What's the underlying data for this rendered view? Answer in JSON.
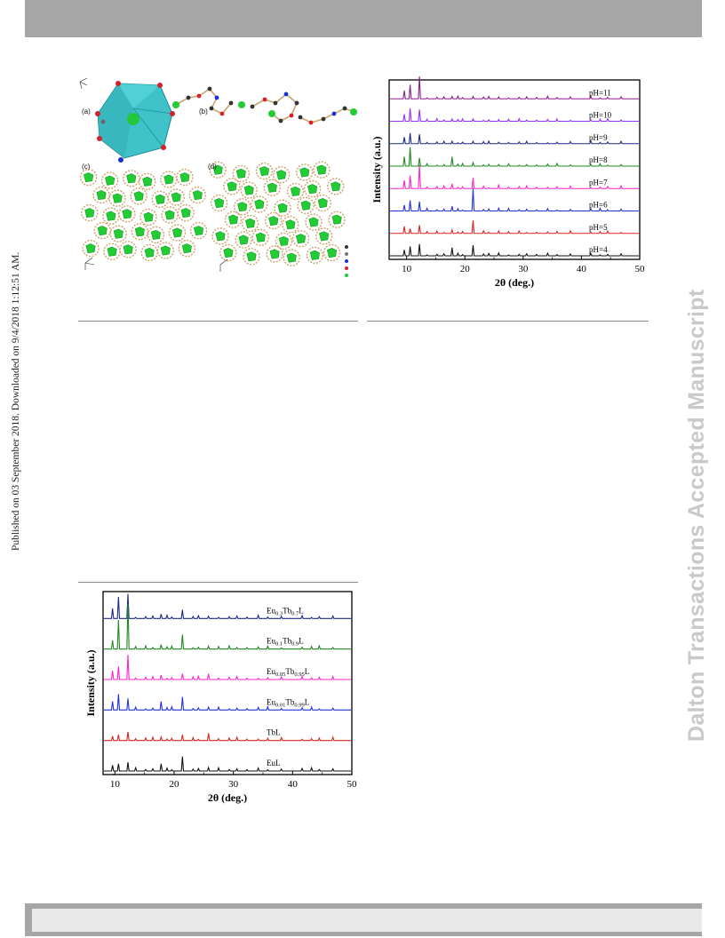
{
  "side_note": "Published on 03 September 2018. Downloaded on 9/4/2018 1:12:51 AM.",
  "watermark": "Dalton Transactions Accepted Manuscript",
  "structure_figure": {
    "panel_labels": [
      "(a)",
      "(b)",
      "(c)",
      "(d)"
    ],
    "colors": {
      "polyhedron": "#40c8cc",
      "metal": "#22cc33",
      "oxygen": "#d4202a",
      "nitrogen": "#1a2fd0",
      "carbon": "#333333",
      "bond": "#c9a46a"
    }
  },
  "chart_data": [
    {
      "type": "line",
      "xlabel": "2θ (deg.)",
      "ylabel": "Intensity (a.u.)",
      "xlim": [
        7,
        50
      ],
      "xticks": [
        10,
        20,
        30,
        40,
        50
      ],
      "grid": false,
      "peaks_2theta": [
        9.6,
        10.6,
        12.2,
        17.8,
        21.4,
        25.8,
        32.3
      ],
      "series": [
        {
          "name": "pH=11",
          "color": "#8b1a8b",
          "intensities": [
            0.35,
            0.6,
            0.95,
            0.1,
            0.1,
            0.08,
            0.06
          ]
        },
        {
          "name": "pH=10",
          "color": "#9b30ff",
          "intensities": [
            0.3,
            0.55,
            0.5,
            0.1,
            0.1,
            0.07,
            0.05
          ]
        },
        {
          "name": "pH=9",
          "color": "#1c2a8c",
          "intensities": [
            0.28,
            0.45,
            0.4,
            0.1,
            0.1,
            0.06,
            0.05
          ]
        },
        {
          "name": "pH=8",
          "color": "#1e8a1e",
          "intensities": [
            0.4,
            0.8,
            0.35,
            0.4,
            0.15,
            0.07,
            0.05
          ]
        },
        {
          "name": "pH=7",
          "color": "#ff22cc",
          "intensities": [
            0.35,
            0.55,
            1.0,
            0.2,
            0.45,
            0.15,
            0.06
          ]
        },
        {
          "name": "pH=6",
          "color": "#2233dd",
          "intensities": [
            0.25,
            0.45,
            0.4,
            0.2,
            0.95,
            0.12,
            0.05
          ]
        },
        {
          "name": "pH=5",
          "color": "#dd2222",
          "intensities": [
            0.3,
            0.2,
            0.35,
            0.15,
            0.55,
            0.1,
            0.05
          ]
        },
        {
          "name": "pH=4",
          "color": "#111111",
          "intensities": [
            0.25,
            0.4,
            0.5,
            0.35,
            0.45,
            0.12,
            0.06
          ]
        }
      ]
    },
    {
      "type": "line",
      "xlabel": "2θ (deg.)",
      "ylabel": "Intensity (a.u.)",
      "xlim": [
        8,
        50
      ],
      "xticks": [
        10,
        20,
        30,
        40,
        50
      ],
      "grid": false,
      "peaks_2theta": [
        9.6,
        10.6,
        12.2,
        17.8,
        21.4,
        25.8,
        32.3
      ],
      "series": [
        {
          "name": "Eu0.3Tb0.7L",
          "label_parts": [
            [
              "Eu",
              ""
            ],
            [
              "0.3",
              "sub"
            ],
            [
              "Tb",
              ""
            ],
            [
              "0.7",
              "sub"
            ],
            [
              "L",
              ""
            ]
          ],
          "color": "#1c2a8c",
          "intensities": [
            0.35,
            0.75,
            0.85,
            0.15,
            0.3,
            0.08,
            0.05
          ]
        },
        {
          "name": "Eu0.1Tb0.9L",
          "label_parts": [
            [
              "Eu",
              ""
            ],
            [
              "0.1",
              "sub"
            ],
            [
              "Tb",
              ""
            ],
            [
              "0.9",
              "sub"
            ],
            [
              "L",
              ""
            ]
          ],
          "color": "#1e8a1e",
          "intensities": [
            0.3,
            1.0,
            1.55,
            0.15,
            0.5,
            0.1,
            0.05
          ]
        },
        {
          "name": "Eu0.05Tb0.95L",
          "label_parts": [
            [
              "Eu",
              ""
            ],
            [
              "0.05",
              "sub"
            ],
            [
              "Tb",
              ""
            ],
            [
              "0.95",
              "sub"
            ],
            [
              "L",
              ""
            ]
          ],
          "color": "#ff22cc",
          "intensities": [
            0.3,
            0.45,
            0.85,
            0.15,
            0.2,
            0.2,
            0.05
          ]
        },
        {
          "name": "Eu0.01Tb0.99L",
          "label_parts": [
            [
              "Eu",
              ""
            ],
            [
              "0.01",
              "sub"
            ],
            [
              "Tb",
              ""
            ],
            [
              "0.99",
              "sub"
            ],
            [
              "L",
              ""
            ]
          ],
          "color": "#2233dd",
          "intensities": [
            0.3,
            0.55,
            0.4,
            0.3,
            0.45,
            0.1,
            0.05
          ]
        },
        {
          "name": "TbL",
          "label_parts": [
            [
              "TbL",
              ""
            ]
          ],
          "color": "#dd2222",
          "intensities": [
            0.15,
            0.2,
            0.3,
            0.12,
            0.2,
            0.25,
            0.05
          ]
        },
        {
          "name": "EuL",
          "label_parts": [
            [
              "EuL",
              ""
            ]
          ],
          "color": "#111111",
          "intensities": [
            0.2,
            0.25,
            0.3,
            0.25,
            0.5,
            0.12,
            0.05
          ]
        }
      ]
    }
  ]
}
